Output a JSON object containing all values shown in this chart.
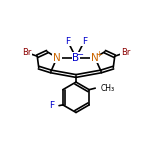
{
  "background_color": "#ffffff",
  "line_color": "#000000",
  "bond_width": 1.2,
  "font_size_atoms": 7.5,
  "font_size_labels": 6.0,
  "figsize": [
    1.52,
    1.52
  ],
  "dpi": 100,
  "colors": {
    "B": "#0000cc",
    "N": "#cc6600",
    "F": "#0000cc",
    "Br": "#8b0000",
    "C": "#000000"
  }
}
